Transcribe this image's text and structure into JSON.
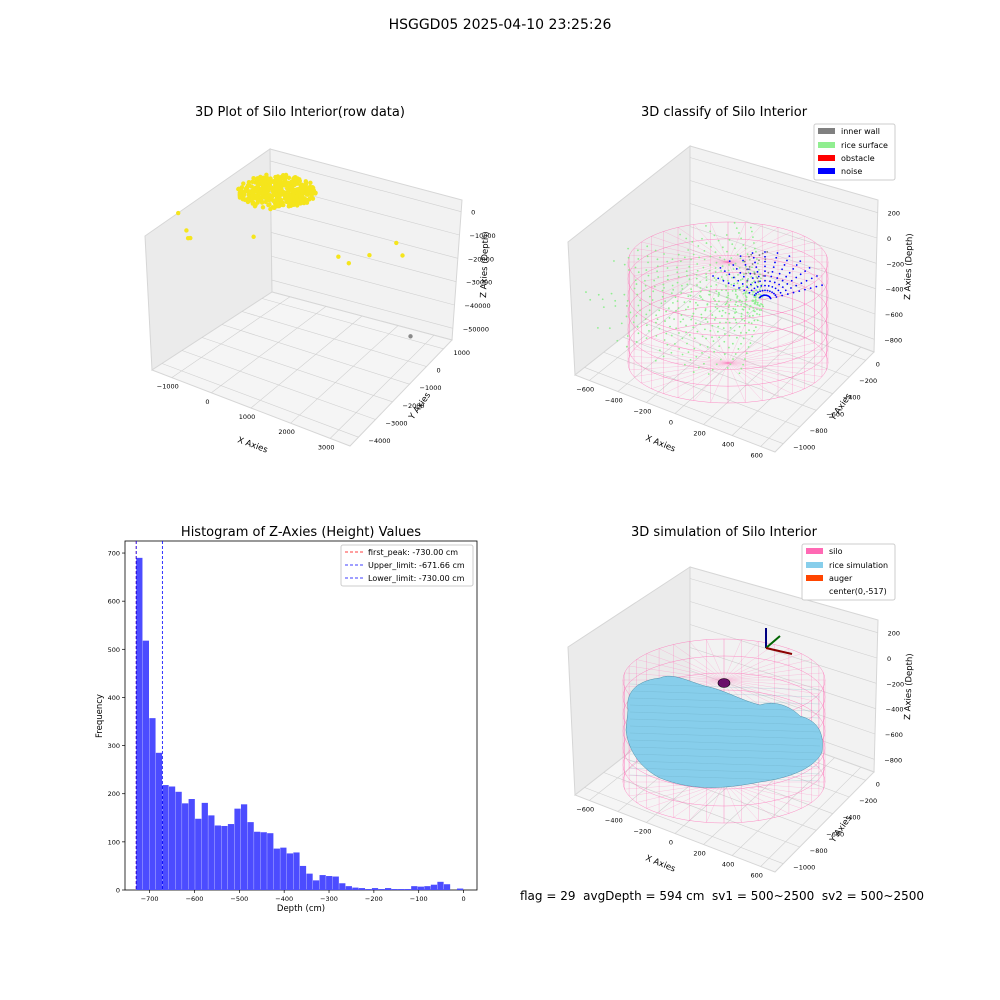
{
  "figure": {
    "suptitle": "HSGGD05 2025-04-10 23:25:26",
    "status_line": "flag = 29  avgDepth = 594 cm  sv1 = 500~2500  sv2 = 500~2500"
  },
  "colors": {
    "raw_points": "#f5e51c",
    "raw_outlier_gray": "#8a8a8a",
    "inner_wall": "#808080",
    "rice_surface": "#90ee90",
    "obstacle": "#ff0000",
    "noise": "#0000ff",
    "silo_wire": "#ff69b4",
    "rice_simulation": "#87ceeb",
    "auger": "#ff4500",
    "histogram_bar": "#4c4cff",
    "first_peak_line": "#ff0000",
    "limit_line": "#0000ff",
    "pane": "#f2f2f2"
  },
  "chart_data": [
    {
      "type": "scatter",
      "projection": "3d",
      "title": "3D Plot of Silo Interior(row data)",
      "xlabel": "X Axies",
      "ylabel": "Y Axies",
      "zlabel": "Z Axies (Depth)",
      "xticks": [
        "−1000",
        "0",
        "1000",
        "2000",
        "3000"
      ],
      "yticks": [
        "1000",
        "0",
        "−1000",
        "−2000",
        "−3000",
        "−4000"
      ],
      "zticks": [
        "0",
        "−10000",
        "−20000",
        "−30000",
        "−40000",
        "−50000"
      ],
      "xlim": [
        -1200,
        3500
      ],
      "ylim": [
        -4500,
        1500
      ],
      "zlim": [
        -55000,
        2000
      ],
      "main_cluster": {
        "x": 0,
        "y": 0,
        "z": -500
      },
      "outliers": [
        {
          "x": -1100,
          "y": 400,
          "z": -8000
        },
        {
          "x": -1000,
          "y": 200,
          "z": -14000
        },
        {
          "x": -1050,
          "y": -100,
          "z": -18000
        },
        {
          "x": -1150,
          "y": -200,
          "z": -19000
        },
        {
          "x": 500,
          "y": 0,
          "z": -9000
        },
        {
          "x": 1800,
          "y": -1500,
          "z": -15000
        },
        {
          "x": 2000,
          "y": -1600,
          "z": -16500
        },
        {
          "x": 2300,
          "y": -2000,
          "z": -14000
        },
        {
          "x": 2700,
          "y": -2500,
          "z": -10000
        },
        {
          "x": 2800,
          "y": -2600,
          "z": -14000
        }
      ],
      "gray_outlier": {
        "x": 2800,
        "y": -3000,
        "z": -42000
      },
      "grid": true
    },
    {
      "type": "scatter",
      "projection": "3d",
      "title": "3D classify of Silo Interior",
      "xlabel": "X Axies",
      "ylabel": "Y Axies",
      "zlabel": "Z Axies (Depth)",
      "xticks": [
        "−600",
        "−400",
        "−200",
        "0",
        "200",
        "400",
        "600"
      ],
      "yticks": [
        "0",
        "−200",
        "−400",
        "−600",
        "−800",
        "−1000"
      ],
      "zticks": [
        "200",
        "0",
        "−200",
        "−400",
        "−600",
        "−800"
      ],
      "legend": [
        "inner wall",
        "rice surface",
        "obstacle",
        "noise"
      ],
      "legend_position": "upper right",
      "grid": true
    },
    {
      "type": "bar",
      "title": "Histogram of Z-Axies (Height) Values",
      "xlabel": "Depth (cm)",
      "ylabel": "Frequency",
      "xlim": [
        -755,
        30
      ],
      "ylim": [
        0,
        725
      ],
      "bin_width": 14.6,
      "x": [
        -730.0,
        -715.4,
        -700.8,
        -686.2,
        -671.6,
        -657.0,
        -642.4,
        -627.8,
        -613.2,
        -598.6,
        -584.0,
        -569.4,
        -554.8,
        -540.2,
        -525.6,
        -511.0,
        -496.4,
        -481.8,
        -467.2,
        -452.6,
        -438.0,
        -423.4,
        -408.8,
        -394.2,
        -379.6,
        -365.0,
        -350.4,
        -335.8,
        -321.2,
        -306.6,
        -292.0,
        -277.4,
        -262.8,
        -248.2,
        -233.6,
        -219.0,
        -204.4,
        -189.8,
        -175.2,
        -160.6,
        -146.0,
        -131.4,
        -116.8,
        -102.2,
        -87.6,
        -73.0,
        -58.4,
        -43.8,
        -29.2,
        -14.6
      ],
      "values": [
        690,
        518,
        357,
        285,
        218,
        215,
        204,
        180,
        189,
        148,
        181,
        155,
        134,
        133,
        137,
        169,
        178,
        141,
        121,
        120,
        118,
        86,
        88,
        76,
        78,
        50,
        34,
        20,
        31,
        29,
        28,
        14,
        8,
        5,
        4,
        2,
        4,
        2,
        4,
        2,
        2,
        2,
        8,
        7,
        8,
        11,
        17,
        12,
        0,
        3
      ],
      "xticks": [
        "−700",
        "−600",
        "−500",
        "−400",
        "−300",
        "−200",
        "−100",
        "0"
      ],
      "yticks": [
        "0",
        "100",
        "200",
        "300",
        "400",
        "500",
        "600",
        "700"
      ],
      "vlines": [
        {
          "x": -730.0,
          "label": "first_peak: -730.00 cm",
          "style": "dashed",
          "color": "red"
        },
        {
          "x": -671.66,
          "label": "Upper_limit: -671.66 cm",
          "style": "dashed",
          "color": "blue"
        },
        {
          "x": -730.0,
          "label": "Lower_limit: -730.00 cm",
          "style": "dashed",
          "color": "blue"
        }
      ],
      "legend_position": "upper right"
    },
    {
      "type": "area",
      "projection": "3d",
      "title": "3D simulation of Silo Interior",
      "xlabel": "X Axies",
      "ylabel": "Y Axies",
      "zlabel": "Z Axies (Depth)",
      "xticks": [
        "−600",
        "−400",
        "−200",
        "0",
        "200",
        "400",
        "600"
      ],
      "yticks": [
        "0",
        "−200",
        "−400",
        "−600",
        "−800",
        "−1000"
      ],
      "zticks": [
        "200",
        "0",
        "−200",
        "−400",
        "−600",
        "−800"
      ],
      "legend": [
        "silo",
        "rice simulation",
        "auger",
        "center(0,-517)"
      ],
      "legend_position": "upper right",
      "grid": true
    }
  ]
}
